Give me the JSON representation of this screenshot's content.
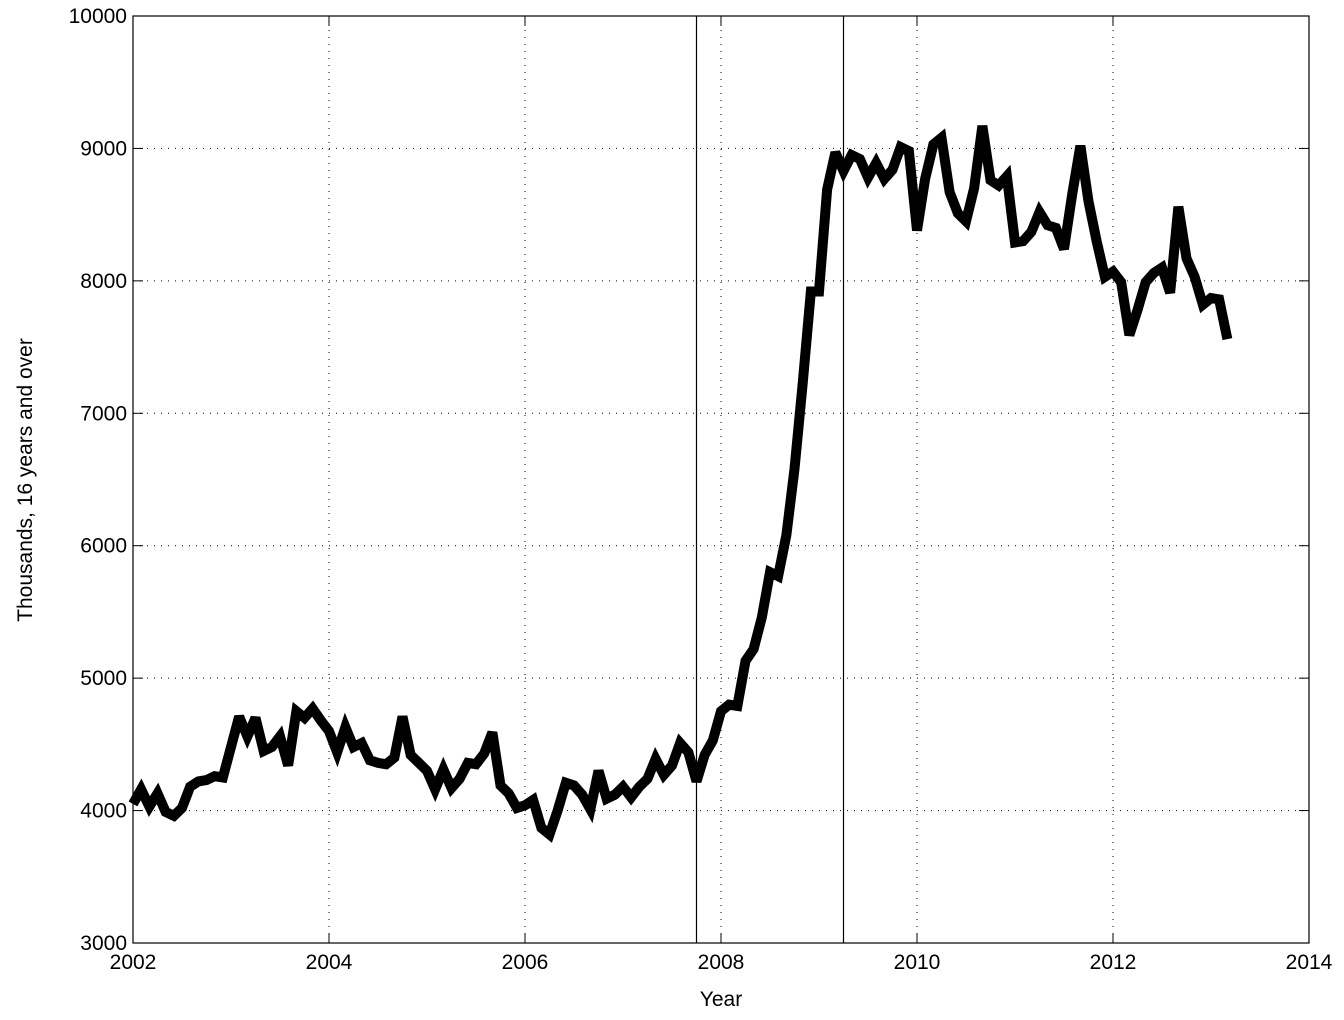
{
  "chart_data": {
    "type": "line",
    "xlabel": "Year",
    "ylabel": "Thousands, 16 years and over",
    "x": [
      2002,
      2002.083,
      2002.167,
      2002.25,
      2002.333,
      2002.417,
      2002.5,
      2002.583,
      2002.667,
      2002.75,
      2002.833,
      2002.917,
      2003,
      2003.083,
      2003.167,
      2003.25,
      2003.333,
      2003.417,
      2003.5,
      2003.583,
      2003.667,
      2003.75,
      2003.833,
      2003.917,
      2004,
      2004.083,
      2004.167,
      2004.25,
      2004.333,
      2004.417,
      2004.5,
      2004.583,
      2004.667,
      2004.75,
      2004.833,
      2004.917,
      2005,
      2005.083,
      2005.167,
      2005.25,
      2005.333,
      2005.417,
      2005.5,
      2005.583,
      2005.667,
      2005.75,
      2005.833,
      2005.917,
      2006,
      2006.083,
      2006.167,
      2006.25,
      2006.333,
      2006.417,
      2006.5,
      2006.583,
      2006.667,
      2006.75,
      2006.833,
      2006.917,
      2007,
      2007.083,
      2007.167,
      2007.25,
      2007.333,
      2007.417,
      2007.5,
      2007.583,
      2007.667,
      2007.75,
      2007.833,
      2007.917,
      2008,
      2008.083,
      2008.167,
      2008.25,
      2008.333,
      2008.417,
      2008.5,
      2008.583,
      2008.667,
      2008.75,
      2008.833,
      2008.917,
      2009,
      2009.083,
      2009.167,
      2009.25,
      2009.333,
      2009.417,
      2009.5,
      2009.583,
      2009.667,
      2009.75,
      2009.833,
      2009.917,
      2010,
      2010.083,
      2010.167,
      2010.25,
      2010.333,
      2010.417,
      2010.5,
      2010.583,
      2010.667,
      2010.75,
      2010.833,
      2010.917,
      2011,
      2011.083,
      2011.167,
      2011.25,
      2011.333,
      2011.417,
      2011.5,
      2011.583,
      2011.667,
      2011.75,
      2011.833,
      2011.917,
      2012,
      2012.083,
      2012.167,
      2012.25,
      2012.333,
      2012.417,
      2012.5,
      2012.583,
      2012.667,
      2012.75,
      2012.833,
      2012.917,
      2013,
      2013.083,
      2013.167
    ],
    "values": [
      4050,
      4160,
      4030,
      4130,
      3990,
      3960,
      4020,
      4180,
      4220,
      4230,
      4260,
      4250,
      4480,
      4710,
      4560,
      4700,
      4450,
      4480,
      4560,
      4340,
      4750,
      4700,
      4770,
      4680,
      4600,
      4440,
      4630,
      4480,
      4510,
      4380,
      4360,
      4350,
      4400,
      4710,
      4420,
      4360,
      4300,
      4160,
      4310,
      4170,
      4240,
      4360,
      4350,
      4430,
      4590,
      4190,
      4130,
      4020,
      4040,
      4080,
      3870,
      3820,
      4000,
      4210,
      4190,
      4120,
      4010,
      4300,
      4090,
      4120,
      4180,
      4100,
      4180,
      4240,
      4390,
      4270,
      4340,
      4510,
      4440,
      4220,
      4420,
      4530,
      4750,
      4800,
      4790,
      5130,
      5220,
      5460,
      5800,
      5770,
      6080,
      6580,
      7220,
      7920,
      7920,
      8690,
      8970,
      8830,
      8950,
      8920,
      8780,
      8890,
      8770,
      8840,
      9010,
      8980,
      8380,
      8770,
      9030,
      9080,
      8670,
      8510,
      8450,
      8700,
      9170,
      8760,
      8720,
      8790,
      8290,
      8300,
      8370,
      8520,
      8420,
      8400,
      8240,
      8650,
      9020,
      8600,
      8300,
      8030,
      8070,
      7990,
      7590,
      7780,
      7990,
      8060,
      8100,
      7910,
      8560,
      8170,
      8030,
      7820,
      7870,
      7860,
      7560
    ],
    "color": "#000000",
    "vlines": [
      2007.75,
      2009.25
    ],
    "xlim": [
      2002,
      2014
    ],
    "xticks": [
      2002,
      2004,
      2006,
      2008,
      2010,
      2012,
      2014
    ],
    "ylim": [
      3000,
      10000
    ],
    "yticks": [
      3000,
      4000,
      5000,
      6000,
      7000,
      8000,
      9000,
      10000
    ],
    "grid": true
  }
}
